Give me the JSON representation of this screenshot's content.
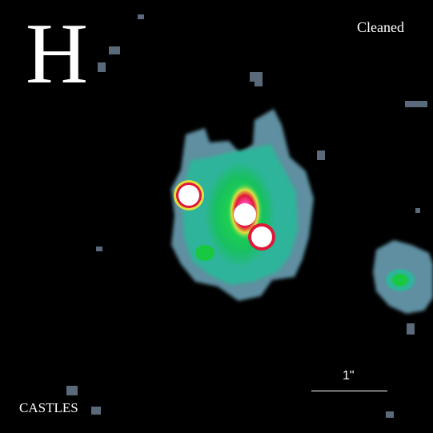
{
  "image": {
    "band": "H",
    "status": "Cleaned",
    "credit": "CASTLES",
    "scale_label": "1\"",
    "colors": {
      "background": "#000000",
      "noise": "#5a6a7a",
      "halo_outer": "#5f8fa0",
      "halo_mid": "#2fb49a",
      "core_green": "#1fd05a",
      "core_yellow": "#e0e040",
      "core_red": "#e01838",
      "peak": "#ffffff"
    }
  }
}
